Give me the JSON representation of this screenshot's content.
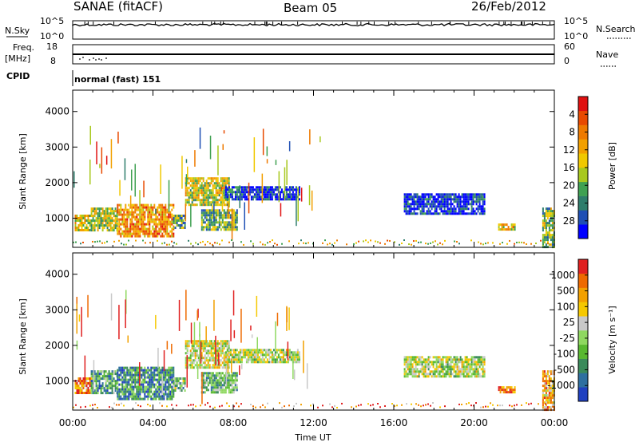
{
  "header": {
    "station": "SANAE (fitACF)",
    "beam": "Beam 05",
    "date": "26/Feb/2012"
  },
  "strips": {
    "nsky_label": "N.Sky",
    "nsearch_label": "N.Search",
    "freq_label_1": "Freq.",
    "freq_label_2": "[MHz]",
    "nave_label": "Nave",
    "cpid_label": "CPID",
    "left_top_tick": "10^5",
    "left_bottom_tick": "10^0",
    "right_top_tick": "10^5",
    "right_bottom_tick": "10^0",
    "freq_top_tick": "18",
    "freq_bottom_tick": "8",
    "nave_top_tick": "60",
    "nave_bottom_tick": "0",
    "cpid_text": "normal (fast) 151"
  },
  "panels": {
    "ylabel": "Slant Range [km]",
    "xlabel": "Time UT",
    "power_label": "Power [dB]",
    "velocity_label": "Velocity [m s⁻¹]"
  },
  "chart_data": [
    {
      "type": "heatmap",
      "name": "power",
      "ylabel": "Slant Range [km]",
      "ylim": [
        180,
        4600
      ],
      "xlim_hours": [
        0,
        24
      ],
      "x_ticks": [
        "00:00",
        "04:00",
        "08:00",
        "12:00",
        "16:00",
        "20:00",
        "00:00"
      ],
      "y_ticks": [
        "1000",
        "2000",
        "3000",
        "4000"
      ],
      "colorbar": {
        "label": "Power [dB]",
        "ticks": [
          "4",
          "8",
          "12",
          "16",
          "20",
          "24",
          "28"
        ],
        "colors": [
          "#0000ff",
          "#1f4fb4",
          "#2e7d6b",
          "#3fa152",
          "#a8c81e",
          "#f0c800",
          "#f2a000",
          "#ee7a00",
          "#e84a00",
          "#e01010"
        ]
      },
      "regions": [
        {
          "t0": 0.1,
          "t1": 0.9,
          "r0": 650,
          "r1": 1100,
          "level": 0.55
        },
        {
          "t0": 0.9,
          "t1": 2.2,
          "r0": 650,
          "r1": 1300,
          "level": 0.45
        },
        {
          "t0": 2.2,
          "t1": 5.0,
          "r0": 500,
          "r1": 1400,
          "level": 0.7
        },
        {
          "t0": 5.0,
          "t1": 5.6,
          "r0": 700,
          "r1": 1100,
          "level": 0.35
        },
        {
          "t0": 5.6,
          "t1": 7.8,
          "r0": 1350,
          "r1": 2150,
          "level": 0.5
        },
        {
          "t0": 6.4,
          "t1": 8.2,
          "r0": 650,
          "r1": 1250,
          "level": 0.35
        },
        {
          "t0": 7.6,
          "t1": 11.3,
          "r0": 1550,
          "r1": 1900,
          "level": 0.1
        },
        {
          "t0": 16.5,
          "t1": 20.5,
          "r0": 1150,
          "r1": 1700,
          "level": 0.1
        },
        {
          "t0": 21.2,
          "t1": 22.0,
          "r0": 650,
          "r1": 850,
          "level": 0.6
        },
        {
          "t0": 23.4,
          "t1": 24.0,
          "r0": 200,
          "r1": 1300,
          "level": 0.4
        }
      ]
    },
    {
      "type": "heatmap",
      "name": "velocity",
      "ylabel": "Slant Range [km]",
      "xlabel": "Time UT",
      "ylim": [
        180,
        4600
      ],
      "xlim_hours": [
        0,
        24
      ],
      "x_ticks": [
        "00:00",
        "04:00",
        "08:00",
        "12:00",
        "16:00",
        "20:00",
        "00:00"
      ],
      "y_ticks": [
        "1000",
        "2000",
        "3000",
        "4000"
      ],
      "colorbar": {
        "label": "Velocity [m s⁻¹]",
        "ticks": [
          "1000",
          "500",
          "100",
          "25",
          "-25",
          "-100",
          "-500",
          "-1000"
        ],
        "colors": [
          "#2040c0",
          "#2e6fa0",
          "#3a8a5a",
          "#58b830",
          "#8fd860",
          "#c8c8c8",
          "#f5c800",
          "#f2a000",
          "#ee6a00",
          "#e02020"
        ]
      },
      "regions": [
        {
          "t0": 0.1,
          "t1": 0.9,
          "r0": 650,
          "r1": 1100,
          "level": 0.8
        },
        {
          "t0": 0.9,
          "t1": 2.2,
          "r0": 650,
          "r1": 1300,
          "level": 0.3
        },
        {
          "t0": 2.2,
          "t1": 5.0,
          "r0": 500,
          "r1": 1400,
          "level": 0.25
        },
        {
          "t0": 5.0,
          "t1": 5.6,
          "r0": 700,
          "r1": 1100,
          "level": 0.4
        },
        {
          "t0": 5.6,
          "t1": 7.8,
          "r0": 1350,
          "r1": 2150,
          "level": 0.55
        },
        {
          "t0": 6.4,
          "t1": 8.2,
          "r0": 650,
          "r1": 1250,
          "level": 0.35
        },
        {
          "t0": 7.6,
          "t1": 11.3,
          "r0": 1550,
          "r1": 1900,
          "level": 0.5
        },
        {
          "t0": 16.5,
          "t1": 20.5,
          "r0": 1150,
          "r1": 1700,
          "level": 0.5
        },
        {
          "t0": 21.2,
          "t1": 22.0,
          "r0": 650,
          "r1": 850,
          "level": 0.85
        },
        {
          "t0": 23.4,
          "t1": 24.0,
          "r0": 200,
          "r1": 1300,
          "level": 0.7
        }
      ]
    }
  ]
}
